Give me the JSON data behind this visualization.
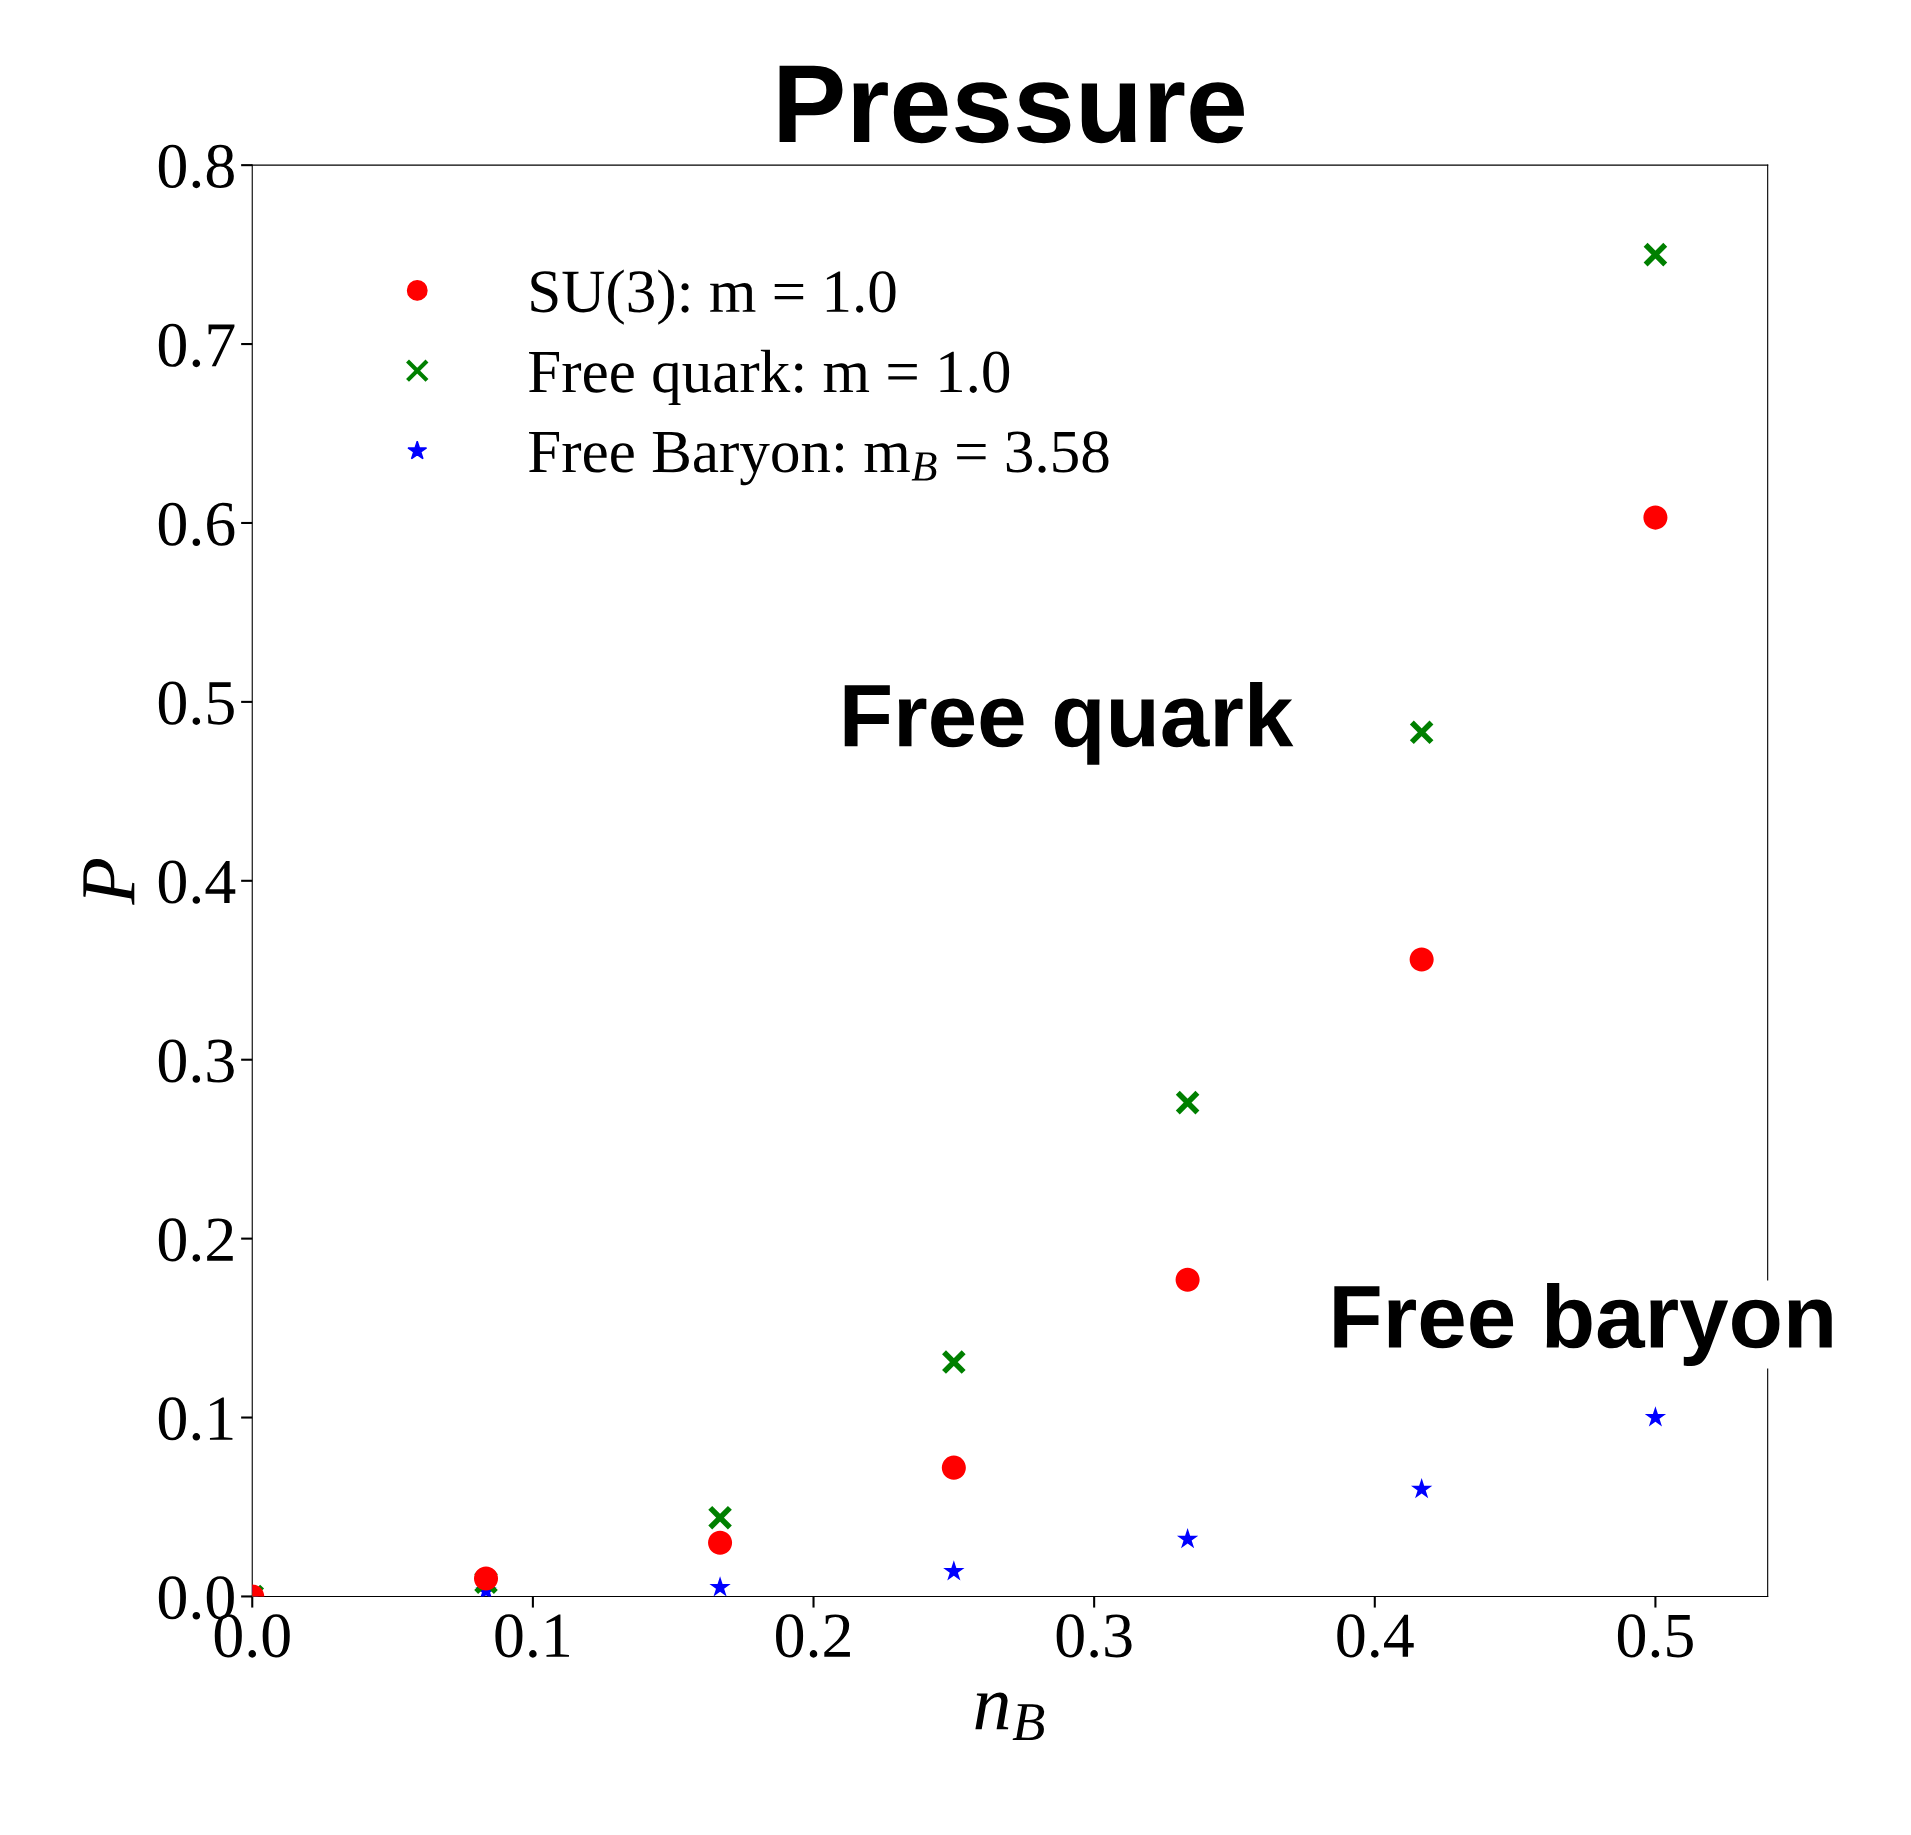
{
  "chart_data": {
    "type": "scatter",
    "title": "Pressure",
    "xlabel": "n$_{B}$",
    "ylabel": "P",
    "xlim": [
      0,
      0.54
    ],
    "ylim": [
      0,
      0.8
    ],
    "xticks": [
      {
        "value": 0,
        "label": "0.0"
      },
      0.1,
      0.2,
      0.3,
      0.4,
      0.5
    ],
    "yticks": [
      {
        "value": 0,
        "label": "0.0"
      },
      0.1,
      0.2,
      0.3,
      0.4,
      0.5,
      0.6,
      0.7,
      0.8
    ],
    "grid": false,
    "legend": "top left",
    "series": [
      {
        "name": "SU(3): m = 1.0",
        "color": "#ff0000",
        "marker": "circle",
        "x": [
          0,
          0.0833,
          0.1667,
          0.25,
          0.3333,
          0.4167,
          0.5
        ],
        "values": [
          0,
          0.01,
          0.03,
          0.072,
          0.177,
          0.356,
          0.603
        ]
      },
      {
        "name": "Free quark: m = 1.0",
        "color": "#008000",
        "marker": "cross",
        "x": [
          0,
          0.0833,
          0.1667,
          0.25,
          0.3333,
          0.4167,
          0.5
        ],
        "values": [
          0,
          0.008,
          0.044,
          0.131,
          0.276,
          0.483,
          0.75
        ]
      },
      {
        "name": "Free Baryon: m$_{B}$ = 3.58",
        "color": "#0000ff",
        "marker": "star",
        "x": [
          0,
          0.0833,
          0.1667,
          0.25,
          0.3333,
          0.4167,
          0.5
        ],
        "values": [
          0,
          0.003,
          0.005,
          0.014,
          0.032,
          0.06,
          0.1
        ]
      }
    ],
    "annotations": [
      "Free quark",
      "Free baryon"
    ]
  }
}
